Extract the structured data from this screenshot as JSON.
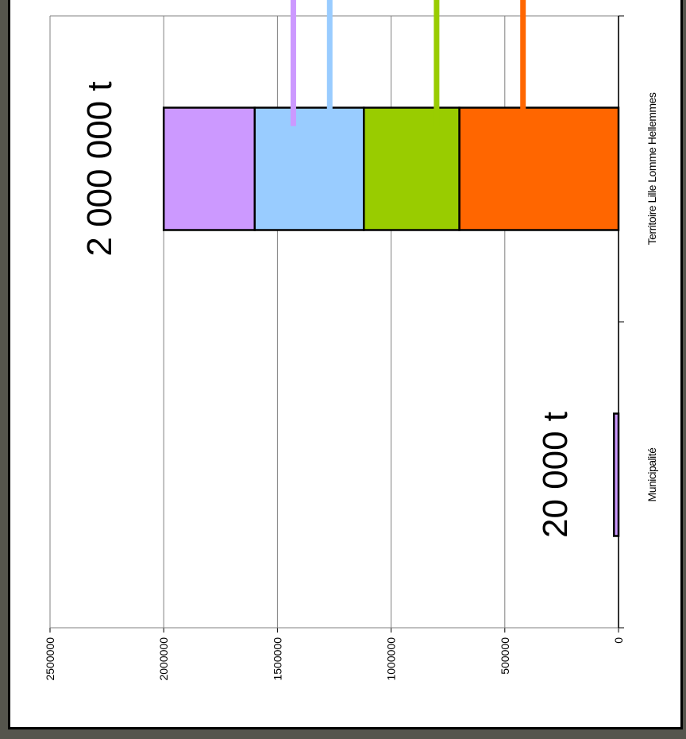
{
  "chart_data": {
    "type": "bar",
    "orientation": "vertical",
    "stacked": true,
    "categories": [
      "Municipalité",
      "Territoire Lille Lomme Hellemmes"
    ],
    "ylim": [
      0,
      2500000
    ],
    "y_ticks": [
      0,
      500000,
      1000000,
      1500000,
      2000000,
      2500000
    ],
    "y_tick_labels": [
      "0",
      "500000",
      "1000000",
      "1500000",
      "2000000",
      "2500000"
    ],
    "grid": true,
    "series": [
      {
        "color": "#ff6600",
        "values": [
          0,
          700000
        ]
      },
      {
        "color": "#99cc00",
        "values": [
          0,
          420000
        ]
      },
      {
        "color": "#99ccff",
        "values": [
          0,
          480000
        ]
      },
      {
        "color": "#cc99ff",
        "values": [
          20000,
          400000
        ]
      }
    ],
    "annotations": [
      {
        "text": "20 000 t",
        "category": "Municipalité"
      },
      {
        "text": "2 000 000 t",
        "category": "Territoire Lille Lomme Hellemmes"
      }
    ],
    "leader_lines": [
      {
        "color": "#cc99ff",
        "y_value": 1430000
      },
      {
        "color": "#99ccff",
        "y_value": 1270000
      },
      {
        "color": "#99cc00",
        "y_value": 800000
      },
      {
        "color": "#ff6600",
        "y_value": 420000
      }
    ]
  }
}
